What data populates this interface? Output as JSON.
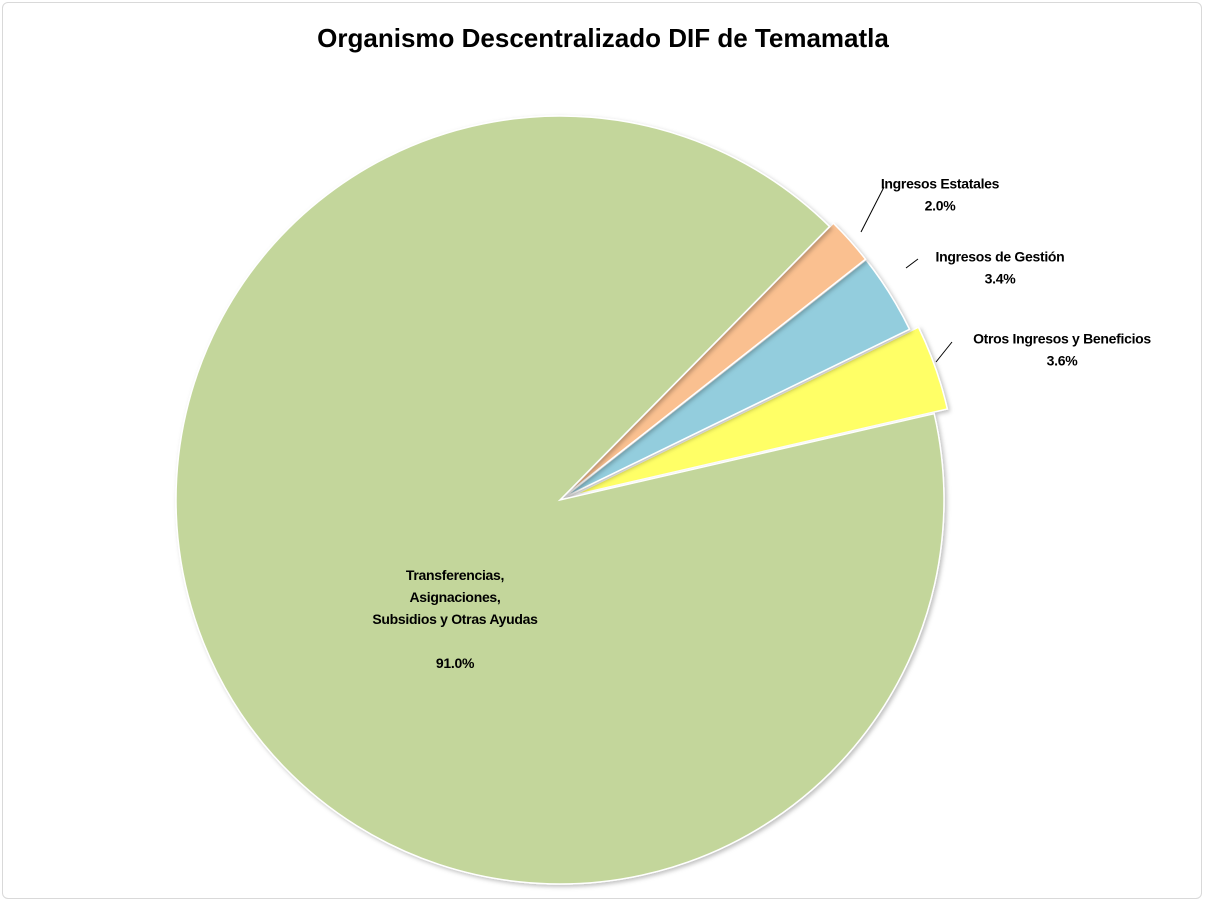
{
  "chart_data": {
    "type": "pie",
    "title": "Organismo Descentralizado DIF de Temamatla",
    "categories": [
      "Otros Ingresos y Beneficios",
      "Ingresos de Gestión",
      "Ingresos Estatales",
      "Transferencias,\nAsignaciones,\nSubsidios y Otras Ayudas"
    ],
    "values": [
      3.6,
      3.4,
      2.0,
      91.0
    ],
    "value_labels": [
      "3.6%",
      "3.4%",
      "2.0%",
      "91.0%"
    ],
    "colors": [
      "#ffff66",
      "#93cddd",
      "#fac090",
      "#c3d69b"
    ]
  }
}
